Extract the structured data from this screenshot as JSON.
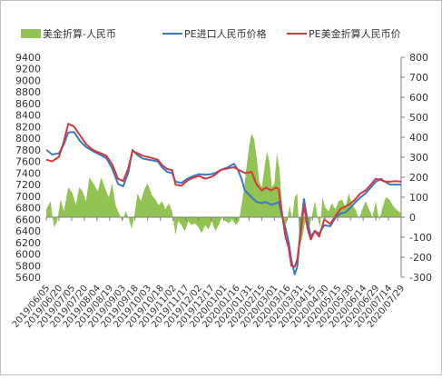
{
  "chart_data": {
    "type": "line",
    "legend": {
      "position": "top",
      "entries": [
        {
          "key": "premium",
          "label": "美金折算-人民币",
          "color": "#92c353",
          "kind": "area"
        },
        {
          "key": "import",
          "label": "PE进口人民币价格",
          "color": "#3a78c3",
          "kind": "line"
        },
        {
          "key": "us",
          "label": "PE美金折算人民币价",
          "color": "#d23a3a",
          "kind": "line"
        }
      ]
    },
    "left_axis": {
      "min": 5600,
      "max": 9400,
      "step": 200,
      "ticks": [
        "9400",
        "9200",
        "9000",
        "8800",
        "8600",
        "8400",
        "8200",
        "8000",
        "7800",
        "7600",
        "7400",
        "7200",
        "7000",
        "6800",
        "6600",
        "6400",
        "6200",
        "6000",
        "5800",
        "5600"
      ]
    },
    "right_axis": {
      "min": -300,
      "max": 800,
      "step": 100,
      "ticks": [
        "800",
        "700",
        "600",
        "500",
        "400",
        "300",
        "200",
        "100",
        "0",
        "-100",
        "-200",
        "-300"
      ]
    },
    "x_start": "2019-06-05",
    "x_end": "2020-07-29",
    "x_tick_labels": [
      "2019/06/05",
      "2019/06/20",
      "2019/07/05",
      "2019/07/20",
      "2019/08/04",
      "2019/08/19",
      "2019/09/03",
      "2019/09/18",
      "2019/10/03",
      "2019/10/18",
      "2019/11/02",
      "2019/11/17",
      "2019/12/02",
      "2019/12/17",
      "2020/01/01",
      "2020/01/16",
      "2020/01/31",
      "2020/02/15",
      "2020/03/01",
      "2020/03/16",
      "2020/03/31",
      "2020/04/15",
      "2020/04/30",
      "2020/05/15",
      "2020/05/30",
      "2020/06/14",
      "2020/06/29",
      "2020/07/14",
      "2020/07/29"
    ],
    "grid": false,
    "series": [
      {
        "key": "import",
        "name": "PE进口人民币价格",
        "axis": "left",
        "points": [
          [
            "2019-06-05",
            7800
          ],
          [
            "2019-06-12",
            7720
          ],
          [
            "2019-06-20",
            7740
          ],
          [
            "2019-06-26",
            7900
          ],
          [
            "2019-07-01",
            8100
          ],
          [
            "2019-07-08",
            8110
          ],
          [
            "2019-07-15",
            7950
          ],
          [
            "2019-07-22",
            7850
          ],
          [
            "2019-07-30",
            7780
          ],
          [
            "2019-08-07",
            7720
          ],
          [
            "2019-08-15",
            7660
          ],
          [
            "2019-08-22",
            7480
          ],
          [
            "2019-08-29",
            7210
          ],
          [
            "2019-09-04",
            7170
          ],
          [
            "2019-09-10",
            7400
          ],
          [
            "2019-09-15",
            7800
          ],
          [
            "2019-09-20",
            7720
          ],
          [
            "2019-09-27",
            7650
          ],
          [
            "2019-10-08",
            7620
          ],
          [
            "2019-10-15",
            7600
          ],
          [
            "2019-10-20",
            7500
          ],
          [
            "2019-10-26",
            7420
          ],
          [
            "2019-11-01",
            7400
          ],
          [
            "2019-11-05",
            7250
          ],
          [
            "2019-11-12",
            7230
          ],
          [
            "2019-11-19",
            7300
          ],
          [
            "2019-11-26",
            7350
          ],
          [
            "2019-12-03",
            7380
          ],
          [
            "2019-12-10",
            7370
          ],
          [
            "2019-12-17",
            7380
          ],
          [
            "2019-12-22",
            7400
          ],
          [
            "2019-12-28",
            7450
          ],
          [
            "2020-01-06",
            7500
          ],
          [
            "2020-01-13",
            7560
          ],
          [
            "2020-01-18",
            7450
          ],
          [
            "2020-01-22",
            7300
          ],
          [
            "2020-01-26",
            7100
          ],
          [
            "2020-02-03",
            6980
          ],
          [
            "2020-02-09",
            6900
          ],
          [
            "2020-02-15",
            6880
          ],
          [
            "2020-02-20",
            6900
          ],
          [
            "2020-02-26",
            6850
          ],
          [
            "2020-03-03",
            6880
          ],
          [
            "2020-03-06",
            6900
          ],
          [
            "2020-03-10",
            6650
          ],
          [
            "2020-03-14",
            6450
          ],
          [
            "2020-03-18",
            6200
          ],
          [
            "2020-03-21",
            5900
          ],
          [
            "2020-03-25",
            5650
          ],
          [
            "2020-03-28",
            5780
          ],
          [
            "2020-04-01",
            6450
          ],
          [
            "2020-04-05",
            6950
          ],
          [
            "2020-04-09",
            6600
          ],
          [
            "2020-04-13",
            6300
          ],
          [
            "2020-04-18",
            6400
          ],
          [
            "2020-04-23",
            6350
          ],
          [
            "2020-04-29",
            6500
          ],
          [
            "2020-05-06",
            6480
          ],
          [
            "2020-05-12",
            6620
          ],
          [
            "2020-05-18",
            6700
          ],
          [
            "2020-05-24",
            6720
          ],
          [
            "2020-05-30",
            6800
          ],
          [
            "2020-06-05",
            6900
          ],
          [
            "2020-06-11",
            6980
          ],
          [
            "2020-06-17",
            7050
          ],
          [
            "2020-06-23",
            7150
          ],
          [
            "2020-06-29",
            7250
          ],
          [
            "2020-07-05",
            7300
          ],
          [
            "2020-07-10",
            7250
          ],
          [
            "2020-07-16",
            7200
          ],
          [
            "2020-07-22",
            7200
          ],
          [
            "2020-07-29",
            7200
          ]
        ]
      },
      {
        "key": "us",
        "name": "PE美金折算人民币价",
        "axis": "left",
        "points": [
          [
            "2019-06-05",
            7630
          ],
          [
            "2019-06-12",
            7600
          ],
          [
            "2019-06-20",
            7680
          ],
          [
            "2019-06-26",
            7950
          ],
          [
            "2019-07-01",
            8250
          ],
          [
            "2019-07-08",
            8200
          ],
          [
            "2019-07-15",
            8050
          ],
          [
            "2019-07-22",
            7900
          ],
          [
            "2019-07-30",
            7800
          ],
          [
            "2019-08-07",
            7750
          ],
          [
            "2019-08-15",
            7700
          ],
          [
            "2019-08-22",
            7550
          ],
          [
            "2019-08-29",
            7300
          ],
          [
            "2019-09-04",
            7260
          ],
          [
            "2019-09-10",
            7480
          ],
          [
            "2019-09-15",
            7780
          ],
          [
            "2019-09-20",
            7750
          ],
          [
            "2019-09-27",
            7700
          ],
          [
            "2019-10-08",
            7660
          ],
          [
            "2019-10-15",
            7630
          ],
          [
            "2019-10-20",
            7540
          ],
          [
            "2019-10-26",
            7470
          ],
          [
            "2019-11-01",
            7450
          ],
          [
            "2019-11-05",
            7200
          ],
          [
            "2019-11-12",
            7180
          ],
          [
            "2019-11-19",
            7270
          ],
          [
            "2019-11-26",
            7320
          ],
          [
            "2019-12-03",
            7350
          ],
          [
            "2019-12-10",
            7300
          ],
          [
            "2019-12-17",
            7330
          ],
          [
            "2019-12-22",
            7370
          ],
          [
            "2019-12-28",
            7450
          ],
          [
            "2020-01-06",
            7480
          ],
          [
            "2020-01-13",
            7500
          ],
          [
            "2020-01-18",
            7460
          ],
          [
            "2020-01-22",
            7430
          ],
          [
            "2020-01-26",
            7400
          ],
          [
            "2020-02-03",
            7420
          ],
          [
            "2020-02-09",
            7200
          ],
          [
            "2020-02-15",
            7100
          ],
          [
            "2020-02-20",
            7150
          ],
          [
            "2020-02-26",
            7100
          ],
          [
            "2020-03-03",
            7150
          ],
          [
            "2020-03-06",
            7120
          ],
          [
            "2020-03-10",
            6700
          ],
          [
            "2020-03-14",
            6300
          ],
          [
            "2020-03-18",
            6100
          ],
          [
            "2020-03-21",
            5800
          ],
          [
            "2020-03-25",
            5780
          ],
          [
            "2020-03-28",
            5900
          ],
          [
            "2020-04-01",
            6350
          ],
          [
            "2020-04-05",
            6850
          ],
          [
            "2020-04-09",
            6450
          ],
          [
            "2020-04-13",
            6250
          ],
          [
            "2020-04-18",
            6400
          ],
          [
            "2020-04-23",
            6300
          ],
          [
            "2020-04-29",
            6600
          ],
          [
            "2020-05-06",
            6520
          ],
          [
            "2020-05-12",
            6650
          ],
          [
            "2020-05-18",
            6780
          ],
          [
            "2020-05-24",
            6820
          ],
          [
            "2020-05-30",
            6870
          ],
          [
            "2020-06-05",
            6950
          ],
          [
            "2020-06-11",
            7050
          ],
          [
            "2020-06-17",
            7100
          ],
          [
            "2020-06-23",
            7200
          ],
          [
            "2020-06-29",
            7300
          ],
          [
            "2020-07-05",
            7280
          ],
          [
            "2020-07-10",
            7250
          ],
          [
            "2020-07-16",
            7250
          ],
          [
            "2020-07-22",
            7260
          ],
          [
            "2020-07-29",
            7250
          ]
        ]
      },
      {
        "key": "premium",
        "name": "美金折算-人民币",
        "axis": "right",
        "points": [
          [
            "2019-06-05",
            40
          ],
          [
            "2019-06-10",
            80
          ],
          [
            "2019-06-14",
            -50
          ],
          [
            "2019-06-18",
            -20
          ],
          [
            "2019-06-22",
            90
          ],
          [
            "2019-06-26",
            30
          ],
          [
            "2019-07-01",
            150
          ],
          [
            "2019-07-06",
            120
          ],
          [
            "2019-07-10",
            60
          ],
          [
            "2019-07-14",
            150
          ],
          [
            "2019-07-18",
            130
          ],
          [
            "2019-07-22",
            80
          ],
          [
            "2019-07-26",
            200
          ],
          [
            "2019-08-01",
            160
          ],
          [
            "2019-08-05",
            130
          ],
          [
            "2019-08-09",
            200
          ],
          [
            "2019-08-14",
            140
          ],
          [
            "2019-08-18",
            100
          ],
          [
            "2019-08-22",
            170
          ],
          [
            "2019-08-26",
            60
          ],
          [
            "2019-08-30",
            20
          ],
          [
            "2019-09-03",
            -20
          ],
          [
            "2019-09-07",
            30
          ],
          [
            "2019-09-11",
            -10
          ],
          [
            "2019-09-14",
            -60
          ],
          [
            "2019-09-17",
            0
          ],
          [
            "2019-09-21",
            120
          ],
          [
            "2019-09-25",
            80
          ],
          [
            "2019-09-29",
            140
          ],
          [
            "2019-10-03",
            170
          ],
          [
            "2019-10-08",
            110
          ],
          [
            "2019-10-12",
            90
          ],
          [
            "2019-10-16",
            60
          ],
          [
            "2019-10-20",
            80
          ],
          [
            "2019-10-24",
            40
          ],
          [
            "2019-10-28",
            70
          ],
          [
            "2019-11-01",
            30
          ],
          [
            "2019-11-05",
            -90
          ],
          [
            "2019-11-08",
            -20
          ],
          [
            "2019-11-12",
            -40
          ],
          [
            "2019-11-16",
            -70
          ],
          [
            "2019-11-20",
            -20
          ],
          [
            "2019-11-24",
            -40
          ],
          [
            "2019-11-28",
            -30
          ],
          [
            "2019-12-02",
            -50
          ],
          [
            "2019-12-06",
            -80
          ],
          [
            "2019-12-10",
            -40
          ],
          [
            "2019-12-14",
            -60
          ],
          [
            "2019-12-18",
            -20
          ],
          [
            "2019-12-22",
            -70
          ],
          [
            "2019-12-26",
            -40
          ],
          [
            "2019-12-30",
            0
          ],
          [
            "2020-01-03",
            -20
          ],
          [
            "2020-01-07",
            -30
          ],
          [
            "2020-01-11",
            -10
          ],
          [
            "2020-01-15",
            -40
          ],
          [
            "2020-01-19",
            -20
          ],
          [
            "2020-01-22",
            60
          ],
          [
            "2020-01-25",
            140
          ],
          [
            "2020-01-28",
            250
          ],
          [
            "2020-01-31",
            350
          ],
          [
            "2020-02-03",
            420
          ],
          [
            "2020-02-06",
            390
          ],
          [
            "2020-02-09",
            300
          ],
          [
            "2020-02-12",
            180
          ],
          [
            "2020-02-15",
            150
          ],
          [
            "2020-02-18",
            240
          ],
          [
            "2020-02-21",
            330
          ],
          [
            "2020-02-24",
            280
          ],
          [
            "2020-02-27",
            150
          ],
          [
            "2020-03-01",
            170
          ],
          [
            "2020-03-04",
            320
          ],
          [
            "2020-03-07",
            240
          ],
          [
            "2020-03-10",
            60
          ],
          [
            "2020-03-13",
            -50
          ],
          [
            "2020-03-16",
            -20
          ],
          [
            "2020-03-19",
            60
          ],
          [
            "2020-03-22",
            -10
          ],
          [
            "2020-03-25",
            100
          ],
          [
            "2020-03-28",
            120
          ],
          [
            "2020-03-31",
            -150
          ],
          [
            "2020-04-03",
            -100
          ],
          [
            "2020-04-06",
            -30
          ],
          [
            "2020-04-09",
            -20
          ],
          [
            "2020-04-12",
            -40
          ],
          [
            "2020-04-15",
            20
          ],
          [
            "2020-04-18",
            80
          ],
          [
            "2020-04-21",
            0
          ],
          [
            "2020-04-24",
            -50
          ],
          [
            "2020-04-27",
            100
          ],
          [
            "2020-04-30",
            50
          ],
          [
            "2020-05-04",
            30
          ],
          [
            "2020-05-08",
            70
          ],
          [
            "2020-05-12",
            40
          ],
          [
            "2020-05-16",
            80
          ],
          [
            "2020-05-20",
            90
          ],
          [
            "2020-05-24",
            50
          ],
          [
            "2020-05-28",
            120
          ],
          [
            "2020-06-01",
            60
          ],
          [
            "2020-06-05",
            40
          ],
          [
            "2020-06-09",
            -10
          ],
          [
            "2020-06-13",
            40
          ],
          [
            "2020-06-17",
            80
          ],
          [
            "2020-06-21",
            40
          ],
          [
            "2020-06-25",
            0
          ],
          [
            "2020-06-29",
            80
          ],
          [
            "2020-07-03",
            -20
          ],
          [
            "2020-07-07",
            50
          ],
          [
            "2020-07-11",
            100
          ],
          [
            "2020-07-15",
            90
          ],
          [
            "2020-07-19",
            60
          ],
          [
            "2020-07-23",
            40
          ],
          [
            "2020-07-29",
            20
          ]
        ]
      }
    ]
  }
}
